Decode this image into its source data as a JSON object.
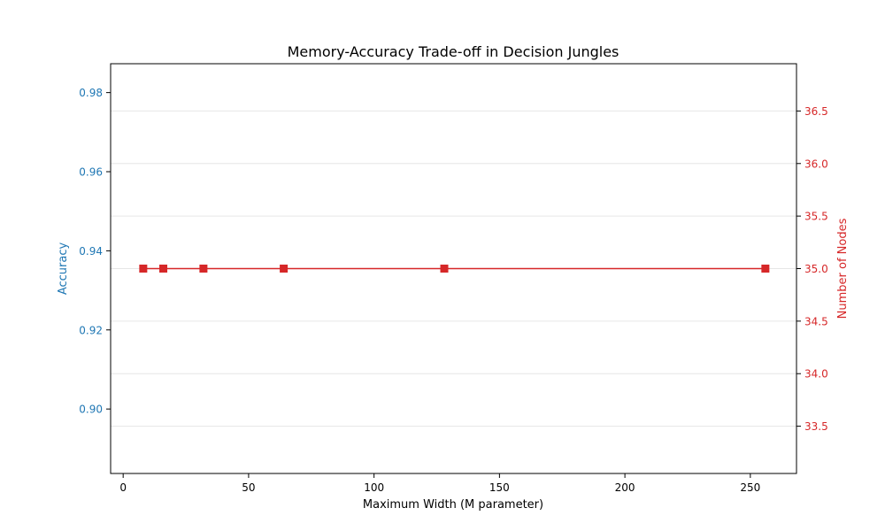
{
  "chart_data": {
    "type": "line",
    "title": "Memory-Accuracy Trade-off in Decision Jungles",
    "xlabel": "Maximum Width (M parameter)",
    "ylabel_left": "Accuracy",
    "ylabel_right": "Number of Nodes",
    "xlim": [
      -5,
      268.4
    ],
    "ylim_left": [
      0.8837,
      0.9873
    ],
    "ylim_right": [
      33.05,
      36.95
    ],
    "x_ticks": [
      0,
      50,
      100,
      150,
      200,
      250
    ],
    "y_ticks_left": [
      0.9,
      0.92,
      0.94,
      0.96,
      0.98
    ],
    "y_ticks_right": [
      33.5,
      34.0,
      34.5,
      35.0,
      35.5,
      36.0,
      36.5
    ],
    "grid": "horizontal",
    "colors": {
      "accuracy": "#1f77b4",
      "nodes": "#d62728",
      "grid": "#e6e6e6",
      "axis": "#000000"
    },
    "series": [
      {
        "name": "Number of Nodes",
        "axis": "right",
        "marker": "square",
        "x": [
          8,
          16,
          32,
          64,
          128,
          256
        ],
        "values": [
          35,
          35,
          35,
          35,
          35,
          35
        ]
      }
    ]
  }
}
